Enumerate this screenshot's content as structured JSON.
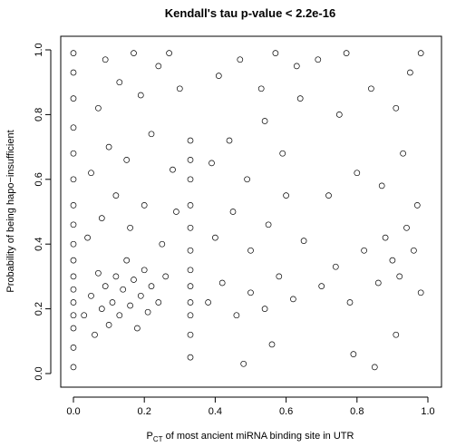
{
  "chart_data": {
    "type": "scatter",
    "title": "Kendall's tau p-value < 2.2e-16",
    "xlabel_main": "P",
    "xlabel_sub": "CT",
    "xlabel_rest": " of most ancient miRNA binding site in UTR",
    "ylabel": "Probability of being hapo−insufficient",
    "xlim": [
      0.0,
      1.0
    ],
    "ylim": [
      0.0,
      1.0
    ],
    "x_ticks": [
      0.0,
      0.2,
      0.4,
      0.6,
      0.8,
      1.0
    ],
    "y_ticks": [
      0.0,
      0.2,
      0.4,
      0.6,
      0.8,
      1.0
    ],
    "x_tick_labels": [
      "0.0",
      "0.2",
      "0.4",
      "0.6",
      "0.8",
      "1.0"
    ],
    "y_tick_labels": [
      "0.0",
      "0.2",
      "0.4",
      "0.6",
      "0.8",
      "1.0"
    ],
    "grid": false,
    "marker": "open-circle",
    "point_color": "#000000",
    "series": [
      {
        "points": [
          [
            0.0,
            0.02
          ],
          [
            0.0,
            0.08
          ],
          [
            0.0,
            0.14
          ],
          [
            0.0,
            0.18
          ],
          [
            0.0,
            0.22
          ],
          [
            0.0,
            0.26
          ],
          [
            0.0,
            0.3
          ],
          [
            0.0,
            0.35
          ],
          [
            0.0,
            0.4
          ],
          [
            0.0,
            0.46
          ],
          [
            0.0,
            0.52
          ],
          [
            0.0,
            0.6
          ],
          [
            0.0,
            0.68
          ],
          [
            0.0,
            0.76
          ],
          [
            0.0,
            0.85
          ],
          [
            0.0,
            0.93
          ],
          [
            0.0,
            0.99
          ],
          [
            0.33,
            0.05
          ],
          [
            0.33,
            0.12
          ],
          [
            0.33,
            0.18
          ],
          [
            0.33,
            0.22
          ],
          [
            0.33,
            0.27
          ],
          [
            0.33,
            0.32
          ],
          [
            0.33,
            0.38
          ],
          [
            0.33,
            0.45
          ],
          [
            0.33,
            0.52
          ],
          [
            0.33,
            0.6
          ],
          [
            0.33,
            0.66
          ],
          [
            0.33,
            0.72
          ],
          [
            0.03,
            0.18
          ],
          [
            0.05,
            0.24
          ],
          [
            0.06,
            0.12
          ],
          [
            0.07,
            0.31
          ],
          [
            0.08,
            0.2
          ],
          [
            0.09,
            0.27
          ],
          [
            0.1,
            0.15
          ],
          [
            0.11,
            0.22
          ],
          [
            0.12,
            0.3
          ],
          [
            0.13,
            0.18
          ],
          [
            0.14,
            0.26
          ],
          [
            0.15,
            0.35
          ],
          [
            0.16,
            0.21
          ],
          [
            0.17,
            0.29
          ],
          [
            0.18,
            0.14
          ],
          [
            0.19,
            0.24
          ],
          [
            0.2,
            0.32
          ],
          [
            0.21,
            0.19
          ],
          [
            0.22,
            0.27
          ],
          [
            0.24,
            0.22
          ],
          [
            0.26,
            0.3
          ],
          [
            0.04,
            0.42
          ],
          [
            0.08,
            0.48
          ],
          [
            0.12,
            0.55
          ],
          [
            0.16,
            0.45
          ],
          [
            0.2,
            0.52
          ],
          [
            0.25,
            0.4
          ],
          [
            0.29,
            0.5
          ],
          [
            0.05,
            0.62
          ],
          [
            0.1,
            0.7
          ],
          [
            0.15,
            0.66
          ],
          [
            0.22,
            0.74
          ],
          [
            0.28,
            0.63
          ],
          [
            0.07,
            0.82
          ],
          [
            0.13,
            0.9
          ],
          [
            0.19,
            0.86
          ],
          [
            0.24,
            0.95
          ],
          [
            0.3,
            0.88
          ],
          [
            0.09,
            0.97
          ],
          [
            0.17,
            0.99
          ],
          [
            0.27,
            0.99
          ],
          [
            0.38,
            0.22
          ],
          [
            0.42,
            0.28
          ],
          [
            0.46,
            0.18
          ],
          [
            0.5,
            0.25
          ],
          [
            0.54,
            0.2
          ],
          [
            0.58,
            0.3
          ],
          [
            0.62,
            0.23
          ],
          [
            0.4,
            0.42
          ],
          [
            0.45,
            0.5
          ],
          [
            0.5,
            0.38
          ],
          [
            0.55,
            0.46
          ],
          [
            0.6,
            0.55
          ],
          [
            0.65,
            0.41
          ],
          [
            0.39,
            0.65
          ],
          [
            0.44,
            0.72
          ],
          [
            0.49,
            0.6
          ],
          [
            0.54,
            0.78
          ],
          [
            0.59,
            0.68
          ],
          [
            0.64,
            0.85
          ],
          [
            0.41,
            0.92
          ],
          [
            0.47,
            0.97
          ],
          [
            0.53,
            0.88
          ],
          [
            0.57,
            0.99
          ],
          [
            0.63,
            0.95
          ],
          [
            0.48,
            0.03
          ],
          [
            0.56,
            0.09
          ],
          [
            0.7,
            0.27
          ],
          [
            0.74,
            0.33
          ],
          [
            0.78,
            0.22
          ],
          [
            0.82,
            0.38
          ],
          [
            0.86,
            0.28
          ],
          [
            0.88,
            0.42
          ],
          [
            0.9,
            0.35
          ],
          [
            0.92,
            0.3
          ],
          [
            0.94,
            0.45
          ],
          [
            0.96,
            0.38
          ],
          [
            0.98,
            0.25
          ],
          [
            0.72,
            0.55
          ],
          [
            0.8,
            0.62
          ],
          [
            0.87,
            0.58
          ],
          [
            0.93,
            0.68
          ],
          [
            0.97,
            0.52
          ],
          [
            0.75,
            0.8
          ],
          [
            0.84,
            0.88
          ],
          [
            0.91,
            0.82
          ],
          [
            0.95,
            0.93
          ],
          [
            0.98,
            0.99
          ],
          [
            0.69,
            0.97
          ],
          [
            0.77,
            0.99
          ],
          [
            0.85,
            0.02
          ],
          [
            0.91,
            0.12
          ],
          [
            0.79,
            0.06
          ]
        ]
      }
    ]
  }
}
